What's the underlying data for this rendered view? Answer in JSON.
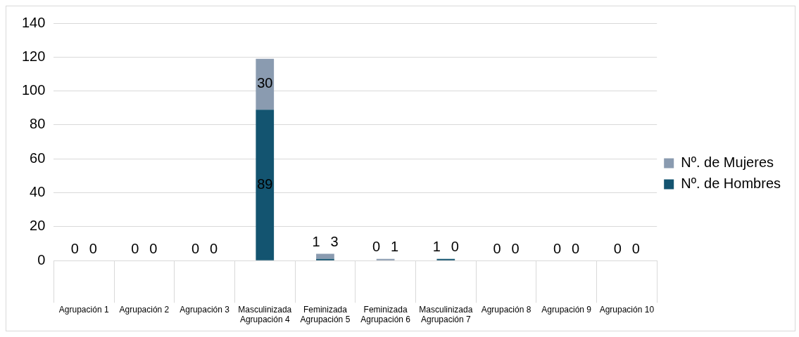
{
  "chart_data": {
    "type": "bar",
    "stacked": true,
    "categories": [
      "Agrupación 1",
      "Agrupación 2",
      "Agrupación 3",
      "Masculinizada\nAgrupación 4",
      "Feminizada\nAgrupación 5",
      "Feminizada\nAgrupación 6",
      "Masculinizada\nAgrupación 7",
      "Agrupación 8",
      "Agrupación 9",
      "Agrupación 10"
    ],
    "series": [
      {
        "name": "Nº. de Hombres",
        "color": "#135470",
        "values": [
          0,
          0,
          0,
          89,
          1,
          0,
          1,
          0,
          0,
          0
        ]
      },
      {
        "name": "Nº. de Mujeres",
        "color": "#8a9bb0",
        "values": [
          0,
          0,
          0,
          30,
          3,
          1,
          0,
          0,
          0,
          0
        ]
      }
    ],
    "ylim": [
      0,
      140
    ],
    "yticks": [
      0,
      20,
      40,
      60,
      80,
      100,
      120,
      140
    ],
    "grid": "y",
    "legend": "right",
    "data_labels": true
  }
}
